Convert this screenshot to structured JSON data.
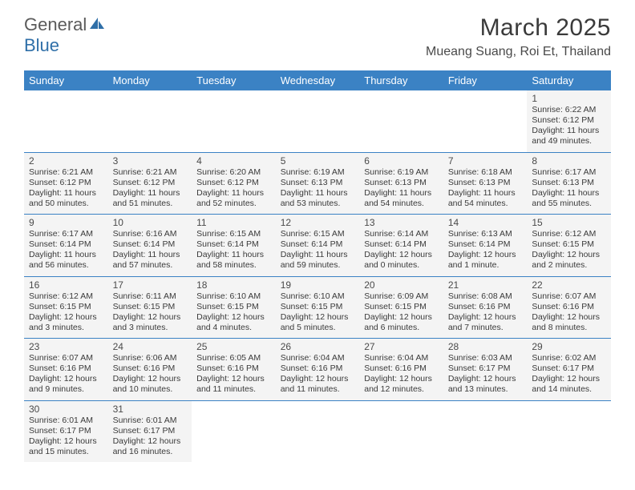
{
  "logo": {
    "text1": "General",
    "text2": "Blue",
    "sail_color": "#2f6fa8",
    "text1_color": "#5a5a5a"
  },
  "title": "March 2025",
  "location": "Mueang Suang, Roi Et, Thailand",
  "colors": {
    "header_bg": "#3b82c4",
    "header_text": "#ffffff",
    "cell_bg": "#f4f4f4",
    "cell_border": "#3b82c4",
    "text": "#3a3a3a",
    "daynum": "#4a4a4a",
    "page_bg": "#ffffff"
  },
  "weekdays": [
    "Sunday",
    "Monday",
    "Tuesday",
    "Wednesday",
    "Thursday",
    "Friday",
    "Saturday"
  ],
  "grid": [
    [
      null,
      null,
      null,
      null,
      null,
      null,
      {
        "n": "1",
        "sr": "6:22 AM",
        "ss": "6:12 PM",
        "dl": "11 hours and 49 minutes."
      }
    ],
    [
      {
        "n": "2",
        "sr": "6:21 AM",
        "ss": "6:12 PM",
        "dl": "11 hours and 50 minutes."
      },
      {
        "n": "3",
        "sr": "6:21 AM",
        "ss": "6:12 PM",
        "dl": "11 hours and 51 minutes."
      },
      {
        "n": "4",
        "sr": "6:20 AM",
        "ss": "6:12 PM",
        "dl": "11 hours and 52 minutes."
      },
      {
        "n": "5",
        "sr": "6:19 AM",
        "ss": "6:13 PM",
        "dl": "11 hours and 53 minutes."
      },
      {
        "n": "6",
        "sr": "6:19 AM",
        "ss": "6:13 PM",
        "dl": "11 hours and 54 minutes."
      },
      {
        "n": "7",
        "sr": "6:18 AM",
        "ss": "6:13 PM",
        "dl": "11 hours and 54 minutes."
      },
      {
        "n": "8",
        "sr": "6:17 AM",
        "ss": "6:13 PM",
        "dl": "11 hours and 55 minutes."
      }
    ],
    [
      {
        "n": "9",
        "sr": "6:17 AM",
        "ss": "6:14 PM",
        "dl": "11 hours and 56 minutes."
      },
      {
        "n": "10",
        "sr": "6:16 AM",
        "ss": "6:14 PM",
        "dl": "11 hours and 57 minutes."
      },
      {
        "n": "11",
        "sr": "6:15 AM",
        "ss": "6:14 PM",
        "dl": "11 hours and 58 minutes."
      },
      {
        "n": "12",
        "sr": "6:15 AM",
        "ss": "6:14 PM",
        "dl": "11 hours and 59 minutes."
      },
      {
        "n": "13",
        "sr": "6:14 AM",
        "ss": "6:14 PM",
        "dl": "12 hours and 0 minutes."
      },
      {
        "n": "14",
        "sr": "6:13 AM",
        "ss": "6:14 PM",
        "dl": "12 hours and 1 minute."
      },
      {
        "n": "15",
        "sr": "6:12 AM",
        "ss": "6:15 PM",
        "dl": "12 hours and 2 minutes."
      }
    ],
    [
      {
        "n": "16",
        "sr": "6:12 AM",
        "ss": "6:15 PM",
        "dl": "12 hours and 3 minutes."
      },
      {
        "n": "17",
        "sr": "6:11 AM",
        "ss": "6:15 PM",
        "dl": "12 hours and 3 minutes."
      },
      {
        "n": "18",
        "sr": "6:10 AM",
        "ss": "6:15 PM",
        "dl": "12 hours and 4 minutes."
      },
      {
        "n": "19",
        "sr": "6:10 AM",
        "ss": "6:15 PM",
        "dl": "12 hours and 5 minutes."
      },
      {
        "n": "20",
        "sr": "6:09 AM",
        "ss": "6:15 PM",
        "dl": "12 hours and 6 minutes."
      },
      {
        "n": "21",
        "sr": "6:08 AM",
        "ss": "6:16 PM",
        "dl": "12 hours and 7 minutes."
      },
      {
        "n": "22",
        "sr": "6:07 AM",
        "ss": "6:16 PM",
        "dl": "12 hours and 8 minutes."
      }
    ],
    [
      {
        "n": "23",
        "sr": "6:07 AM",
        "ss": "6:16 PM",
        "dl": "12 hours and 9 minutes."
      },
      {
        "n": "24",
        "sr": "6:06 AM",
        "ss": "6:16 PM",
        "dl": "12 hours and 10 minutes."
      },
      {
        "n": "25",
        "sr": "6:05 AM",
        "ss": "6:16 PM",
        "dl": "12 hours and 11 minutes."
      },
      {
        "n": "26",
        "sr": "6:04 AM",
        "ss": "6:16 PM",
        "dl": "12 hours and 11 minutes."
      },
      {
        "n": "27",
        "sr": "6:04 AM",
        "ss": "6:16 PM",
        "dl": "12 hours and 12 minutes."
      },
      {
        "n": "28",
        "sr": "6:03 AM",
        "ss": "6:17 PM",
        "dl": "12 hours and 13 minutes."
      },
      {
        "n": "29",
        "sr": "6:02 AM",
        "ss": "6:17 PM",
        "dl": "12 hours and 14 minutes."
      }
    ],
    [
      {
        "n": "30",
        "sr": "6:01 AM",
        "ss": "6:17 PM",
        "dl": "12 hours and 15 minutes."
      },
      {
        "n": "31",
        "sr": "6:01 AM",
        "ss": "6:17 PM",
        "dl": "12 hours and 16 minutes."
      },
      null,
      null,
      null,
      null,
      null
    ]
  ],
  "labels": {
    "sunrise": "Sunrise:",
    "sunset": "Sunset:",
    "daylight": "Daylight:"
  }
}
